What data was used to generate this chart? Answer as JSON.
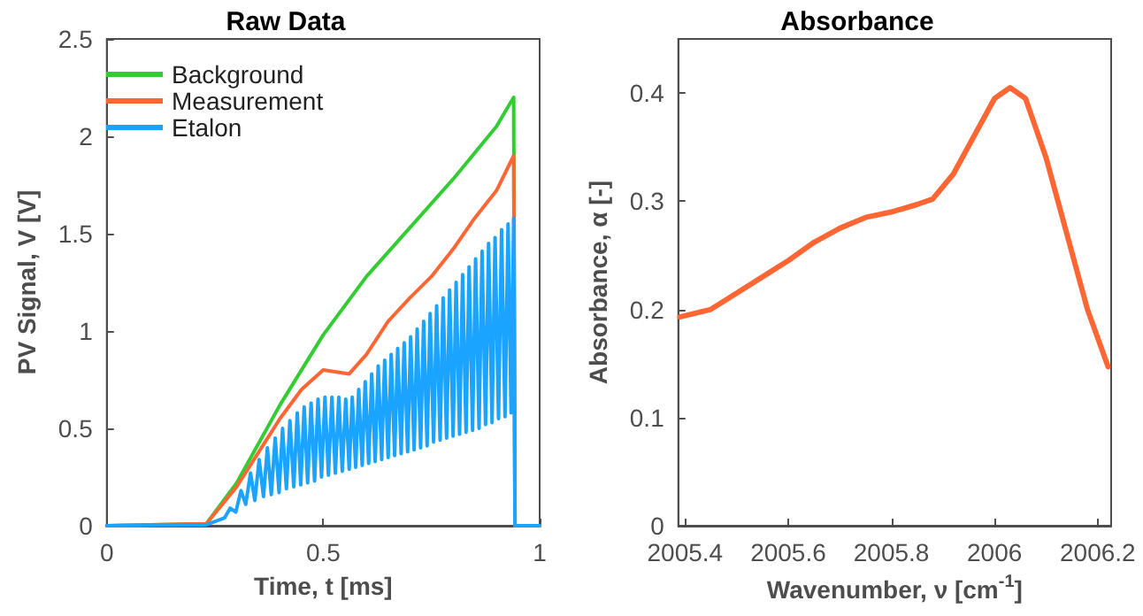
{
  "chart_data": [
    {
      "type": "line",
      "title": "Raw Data",
      "xlabel": "Time, t [ms]",
      "ylabel": "PV Signal, V [V]",
      "xlim": [
        0,
        1
      ],
      "xticks": [
        0,
        0.5,
        1
      ],
      "ylim": [
        0,
        2.5
      ],
      "yticks": [
        0,
        0.5,
        1,
        1.5,
        2,
        2.5
      ],
      "grid": false,
      "legend": "top left",
      "marker": "none",
      "line_style": "solid",
      "series": [
        {
          "name": "Background",
          "color": "#33cc33",
          "x": [
            0,
            0.23,
            0.3,
            0.4,
            0.5,
            0.6,
            0.7,
            0.8,
            0.9,
            0.94,
            0.943,
            1
          ],
          "values": [
            0,
            0.01,
            0.22,
            0.62,
            0.98,
            1.28,
            1.53,
            1.78,
            2.05,
            2.2,
            0,
            0
          ]
        },
        {
          "name": "Measurement",
          "color": "#ff6633",
          "x": [
            0,
            0.23,
            0.3,
            0.4,
            0.45,
            0.5,
            0.53,
            0.56,
            0.6,
            0.65,
            0.7,
            0.75,
            0.8,
            0.85,
            0.9,
            0.94,
            0.943,
            1
          ],
          "values": [
            0,
            0.01,
            0.2,
            0.55,
            0.7,
            0.8,
            0.79,
            0.78,
            0.88,
            1.05,
            1.17,
            1.28,
            1.42,
            1.58,
            1.72,
            1.9,
            0,
            0
          ]
        },
        {
          "name": "Etalon",
          "color": "#1aa3ff",
          "x": [
            0,
            0.23,
            0.26,
            0.272,
            0.285,
            0.298,
            0.31,
            0.321,
            0.332,
            0.342,
            0.352,
            0.362,
            0.371,
            0.38,
            0.389,
            0.398,
            0.406,
            0.415,
            0.423,
            0.432,
            0.44,
            0.448,
            0.456,
            0.464,
            0.472,
            0.48,
            0.488,
            0.496,
            0.504,
            0.512,
            0.52,
            0.528,
            0.536,
            0.544,
            0.552,
            0.56,
            0.567,
            0.575,
            0.582,
            0.59,
            0.597,
            0.605,
            0.612,
            0.62,
            0.627,
            0.635,
            0.642,
            0.65,
            0.657,
            0.665,
            0.672,
            0.68,
            0.687,
            0.695,
            0.702,
            0.71,
            0.717,
            0.725,
            0.732,
            0.74,
            0.747,
            0.755,
            0.762,
            0.77,
            0.777,
            0.785,
            0.792,
            0.8,
            0.807,
            0.815,
            0.822,
            0.83,
            0.837,
            0.845,
            0.852,
            0.86,
            0.867,
            0.875,
            0.882,
            0.89,
            0.897,
            0.905,
            0.912,
            0.92,
            0.927,
            0.934,
            0.94,
            0.943,
            1
          ],
          "values": [
            0,
            0.005,
            0.03,
            0.04,
            0.09,
            0.07,
            0.18,
            0.11,
            0.27,
            0.13,
            0.34,
            0.15,
            0.4,
            0.16,
            0.45,
            0.17,
            0.5,
            0.19,
            0.54,
            0.2,
            0.58,
            0.21,
            0.61,
            0.22,
            0.63,
            0.23,
            0.65,
            0.25,
            0.66,
            0.26,
            0.66,
            0.27,
            0.66,
            0.28,
            0.65,
            0.29,
            0.66,
            0.3,
            0.7,
            0.31,
            0.74,
            0.32,
            0.78,
            0.33,
            0.82,
            0.34,
            0.85,
            0.35,
            0.88,
            0.36,
            0.91,
            0.37,
            0.94,
            0.38,
            0.97,
            0.39,
            1.01,
            0.4,
            1.05,
            0.41,
            1.09,
            0.43,
            1.13,
            0.44,
            1.17,
            0.45,
            1.21,
            0.46,
            1.25,
            0.47,
            1.29,
            0.48,
            1.33,
            0.49,
            1.37,
            0.5,
            1.41,
            0.52,
            1.45,
            0.53,
            1.48,
            0.55,
            1.52,
            0.56,
            1.55,
            0.58,
            1.58,
            0,
            0
          ]
        }
      ]
    },
    {
      "type": "line",
      "title": "Absorbance",
      "xlabel": "Wavenumber, ν [cm$^{-1}$]",
      "ylabel": "Absorbance, α [-]",
      "xlim": [
        2005.387,
        2006.226
      ],
      "xticks": [
        2005.4,
        2005.6,
        2005.8,
        2006,
        2006.2
      ],
      "ylim": [
        0,
        0.45
      ],
      "yticks": [
        0,
        0.1,
        0.2,
        0.3,
        0.4
      ],
      "grid": false,
      "legend": false,
      "marker": "none",
      "line_style": "solid",
      "series": [
        {
          "color": "#ff6633",
          "x": [
            2005.39,
            2005.45,
            2005.5,
            2005.55,
            2005.6,
            2005.65,
            2005.7,
            2005.75,
            2005.8,
            2005.85,
            2005.88,
            2005.92,
            2005.96,
            2006.0,
            2006.03,
            2006.06,
            2006.1,
            2006.14,
            2006.18,
            2006.22
          ],
          "values": [
            0.193,
            0.2,
            0.215,
            0.23,
            0.245,
            0.262,
            0.275,
            0.285,
            0.29,
            0.297,
            0.302,
            0.325,
            0.36,
            0.395,
            0.405,
            0.395,
            0.34,
            0.27,
            0.2,
            0.147
          ]
        }
      ]
    }
  ]
}
